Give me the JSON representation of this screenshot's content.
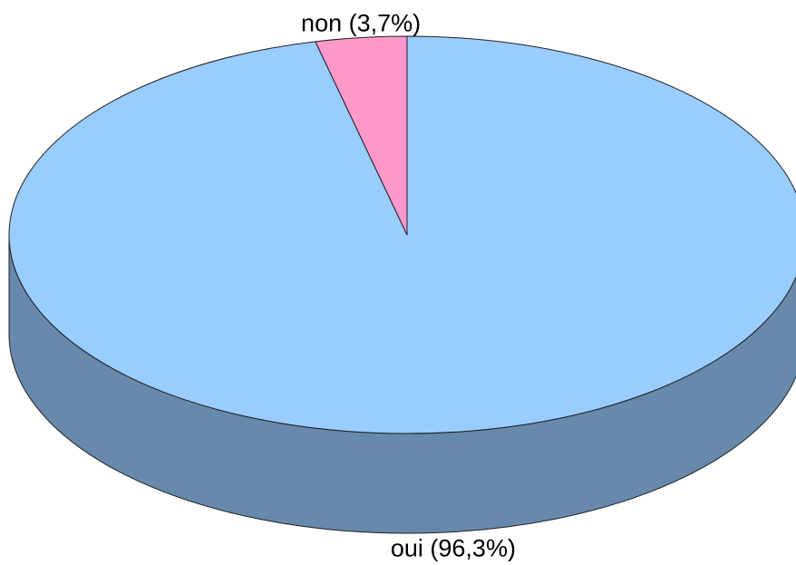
{
  "chart_data": {
    "type": "pie3d",
    "labels": [
      "oui (96,3%)",
      "non (3,7%)"
    ],
    "values": [
      96.3,
      3.7
    ],
    "colors": [
      "#99ccff",
      "#ff99cc"
    ],
    "start_angle": 90,
    "direction": "clockwise"
  }
}
